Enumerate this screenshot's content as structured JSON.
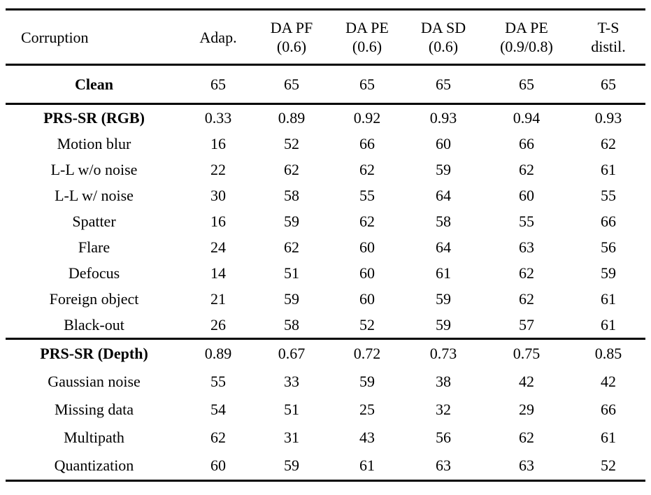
{
  "table": {
    "columns": [
      {
        "label": "Corruption",
        "sub": ""
      },
      {
        "label": "Adap.",
        "sub": ""
      },
      {
        "label": "DA PF",
        "sub": "(0.6)"
      },
      {
        "label": "DA PE",
        "sub": "(0.6)"
      },
      {
        "label": "DA SD",
        "sub": "(0.6)"
      },
      {
        "label": "DA PE",
        "sub": "(0.9/0.8)"
      },
      {
        "label": "T-S",
        "sub": "distil."
      }
    ],
    "sections": [
      {
        "name": "clean",
        "rows": [
          {
            "label": "Clean",
            "bold": true,
            "values": [
              "65",
              "65",
              "65",
              "65",
              "65",
              "65"
            ]
          }
        ]
      },
      {
        "name": "rgb",
        "rows": [
          {
            "label": "PRS-SR (RGB)",
            "bold": true,
            "values": [
              "0.33",
              "0.89",
              "0.92",
              "0.93",
              "0.94",
              "0.93"
            ]
          },
          {
            "label": "Motion blur",
            "bold": false,
            "values": [
              "16",
              "52",
              "66",
              "60",
              "66",
              "62"
            ]
          },
          {
            "label": "L-L w/o noise",
            "bold": false,
            "values": [
              "22",
              "62",
              "62",
              "59",
              "62",
              "61"
            ]
          },
          {
            "label": "L-L w/ noise",
            "bold": false,
            "values": [
              "30",
              "58",
              "55",
              "64",
              "60",
              "55"
            ]
          },
          {
            "label": "Spatter",
            "bold": false,
            "values": [
              "16",
              "59",
              "62",
              "58",
              "55",
              "66"
            ]
          },
          {
            "label": "Flare",
            "bold": false,
            "values": [
              "24",
              "62",
              "60",
              "64",
              "63",
              "56"
            ]
          },
          {
            "label": "Defocus",
            "bold": false,
            "values": [
              "14",
              "51",
              "60",
              "61",
              "62",
              "59"
            ]
          },
          {
            "label": "Foreign object",
            "bold": false,
            "values": [
              "21",
              "59",
              "60",
              "59",
              "62",
              "61"
            ]
          },
          {
            "label": "Black-out",
            "bold": false,
            "values": [
              "26",
              "58",
              "52",
              "59",
              "57",
              "61"
            ]
          }
        ]
      },
      {
        "name": "depth",
        "rows": [
          {
            "label": "PRS-SR (Depth)",
            "bold": true,
            "values": [
              "0.89",
              "0.67",
              "0.72",
              "0.73",
              "0.75",
              "0.85"
            ]
          },
          {
            "label": "Gaussian noise",
            "bold": false,
            "values": [
              "55",
              "33",
              "59",
              "38",
              "42",
              "42"
            ]
          },
          {
            "label": "Missing data",
            "bold": false,
            "values": [
              "54",
              "51",
              "25",
              "32",
              "29",
              "66"
            ]
          },
          {
            "label": "Multipath",
            "bold": false,
            "values": [
              "62",
              "31",
              "43",
              "56",
              "62",
              "61"
            ]
          },
          {
            "label": "Quantization",
            "bold": false,
            "values": [
              "60",
              "59",
              "61",
              "63",
              "63",
              "52"
            ]
          }
        ]
      }
    ]
  }
}
